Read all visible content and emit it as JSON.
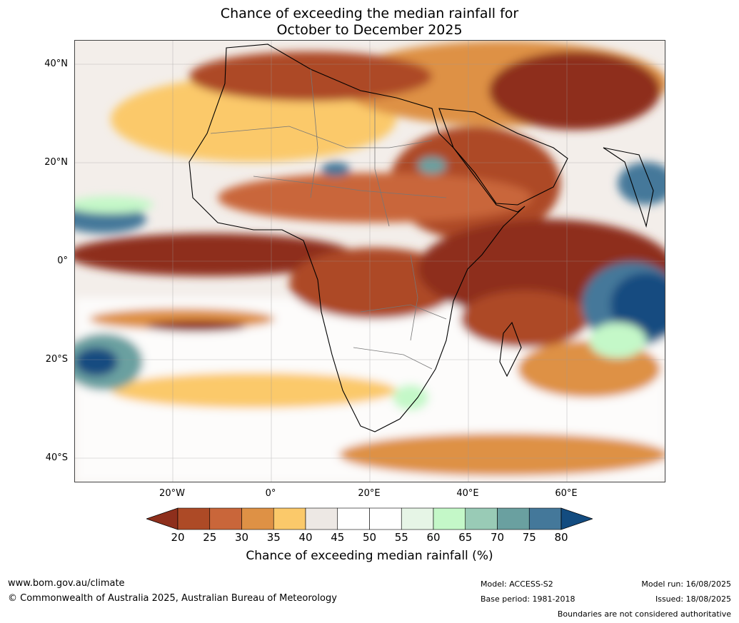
{
  "title": {
    "line1": "Chance of exceeding the median rainfall for",
    "line2": "October to December 2025"
  },
  "latitude_labels": [
    "40°N",
    "20°N",
    "0°",
    "20°S",
    "40°S"
  ],
  "longitude_labels": [
    "20°W",
    "0°",
    "20°E",
    "40°E",
    "60°E"
  ],
  "colorbar": {
    "ticks": [
      "20",
      "25",
      "30",
      "35",
      "40",
      "45",
      "50",
      "55",
      "60",
      "65",
      "70",
      "75",
      "80"
    ],
    "colors": [
      "#8e2f1c",
      "#ad4a26",
      "#c9663a",
      "#de9145",
      "#fbc96a",
      "#ede8e4",
      "#ffffff",
      "#ffffff",
      "#e6f5e6",
      "#c4f8c8",
      "#99cbb6",
      "#6aa0a0",
      "#44789a",
      "#134c80"
    ],
    "label": "Chance of exceeding median rainfall (%)"
  },
  "footer": {
    "website": "www.bom.gov.au/climate",
    "copyright": "© Commonwealth of Australia 2025, Australian Bureau of Meteorology",
    "model": "Model: ACCESS-S2",
    "base_period": "Base period: 1981-2018",
    "model_run": "Model run: 16/08/2025",
    "issued": "Issued: 18/08/2025",
    "disclaimer": "Boundaries are not considered authoritative"
  }
}
